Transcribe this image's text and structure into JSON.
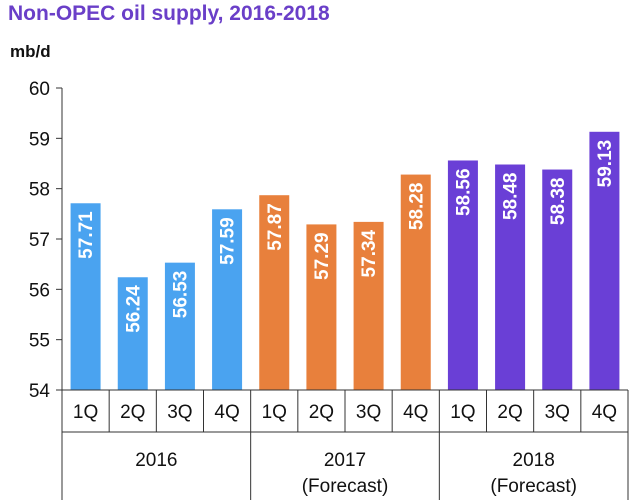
{
  "chart_data": {
    "type": "bar",
    "title": "Non-OPEC oil supply, 2016-2018",
    "ylabel": "mb/d",
    "ylim": [
      54,
      60
    ],
    "yticks": [
      54,
      55,
      56,
      57,
      58,
      59,
      60
    ],
    "grid": false,
    "categories": [
      "1Q",
      "2Q",
      "3Q",
      "4Q",
      "1Q",
      "2Q",
      "3Q",
      "4Q",
      "1Q",
      "2Q",
      "3Q",
      "4Q"
    ],
    "groups": [
      {
        "name": "2016",
        "subname": "",
        "color": "#4aa3f0",
        "start": 0,
        "count": 4
      },
      {
        "name": "2017",
        "subname": "(Forecast)",
        "color": "#e8803c",
        "start": 4,
        "count": 4
      },
      {
        "name": "2018",
        "subname": "(Forecast)",
        "color": "#6a3fd6",
        "start": 8,
        "count": 4
      }
    ],
    "values": [
      57.71,
      56.24,
      56.53,
      57.59,
      57.87,
      57.29,
      57.34,
      58.28,
      58.56,
      58.48,
      58.38,
      59.13
    ]
  }
}
